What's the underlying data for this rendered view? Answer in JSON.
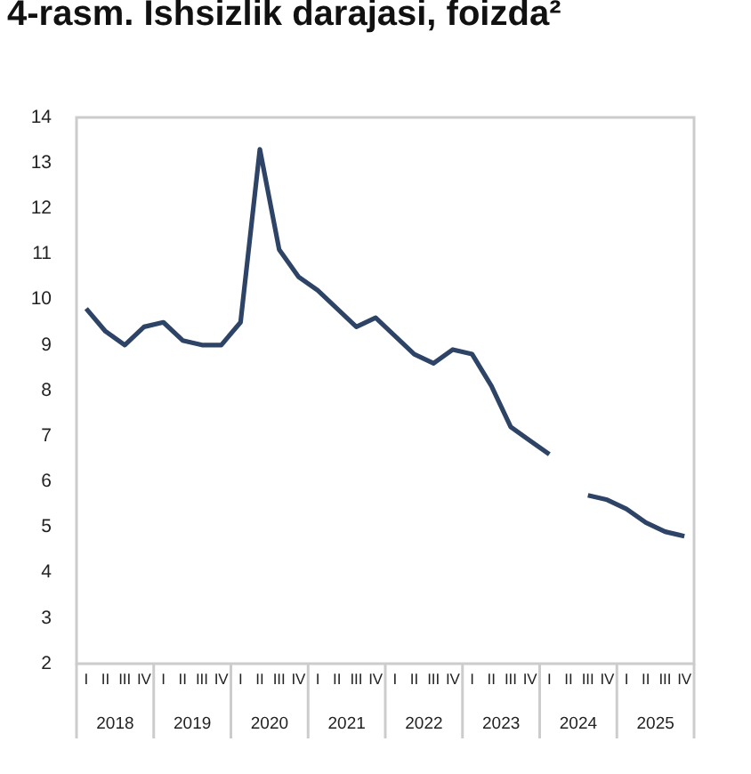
{
  "chart_data": {
    "type": "line",
    "title": "4-rasm. Ishsizlik darajasi, foizda²",
    "categories": [
      "I",
      "II",
      "III",
      "IV",
      "I",
      "II",
      "III",
      "IV",
      "I",
      "II",
      "III",
      "IV",
      "I",
      "II",
      "III",
      "IV",
      "I",
      "II",
      "III",
      "IV",
      "I",
      "II",
      "III",
      "IV",
      "I",
      "II",
      "III",
      "IV",
      "I",
      "II",
      "III",
      "IV"
    ],
    "series": [
      {
        "color": "#2e4466",
        "values": [
          9.8,
          9.3,
          9.0,
          9.4,
          9.5,
          9.1,
          9.0,
          9.0,
          9.5,
          13.3,
          11.1,
          10.5,
          10.2,
          9.8,
          9.4,
          9.6,
          9.2,
          8.8,
          8.6,
          8.9,
          8.8,
          8.1,
          7.2,
          6.9,
          6.6,
          null,
          5.7,
          5.6,
          5.4,
          5.1,
          4.9,
          4.8
        ]
      }
    ],
    "ylim": [
      2,
      14
    ],
    "yticks": [
      2,
      3,
      4,
      5,
      6,
      7,
      8,
      9,
      10,
      11,
      12,
      13,
      14
    ],
    "grid": false,
    "legend": false,
    "annotations": [
      "2018",
      "2019",
      "2020",
      "2021",
      "2022",
      "2023",
      "2024",
      "2025"
    ]
  }
}
